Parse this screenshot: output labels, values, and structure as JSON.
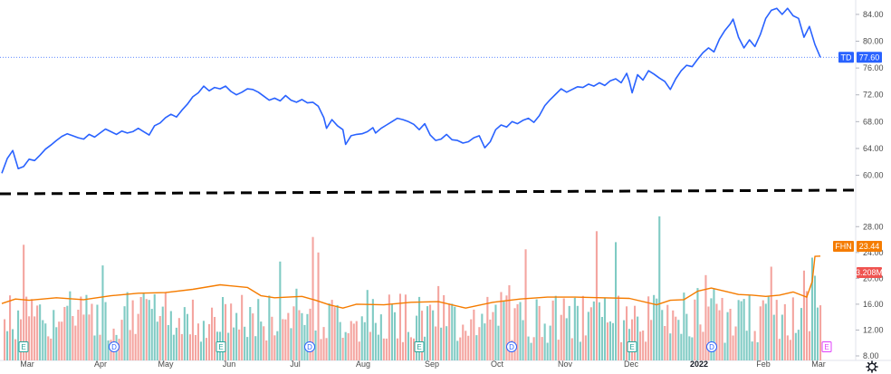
{
  "colors": {
    "td_line": "#2962ff",
    "fhn_line": "#f57c00",
    "vol_up": "#80cbc4",
    "vol_down": "#f4a5a0",
    "divider": "#000000",
    "earnings_flag": "#26a69a",
    "dividend_flag": "#2962ff",
    "future_earnings_flag": "#e040fb"
  },
  "tags": {
    "td_symbol": "TD",
    "td_value": "77.60",
    "fhn_symbol": "FHN",
    "fhn_value": "23.44",
    "volume_value": "3.208M"
  },
  "settings_icon": "gear-icon",
  "chart_data": [
    {
      "type": "line",
      "series": [
        {
          "name": "TD",
          "color": "#2962ff"
        }
      ],
      "x_range": [
        "2021-02-20",
        "2022-03-02"
      ],
      "x_ticks": [
        "Mar",
        "Apr",
        "May",
        "Jun",
        "Jul",
        "Aug",
        "Sep",
        "Oct",
        "Nov",
        "Dec",
        "2022",
        "Feb",
        "Mar"
      ],
      "y_ticks": [
        "84.00",
        "80.00",
        "76.00",
        "72.00",
        "68.00",
        "64.00",
        "60.00"
      ],
      "ylim": [
        59.4,
        85.2
      ],
      "last_value": 77.6,
      "points": [
        [
          0,
          60.3
        ],
        [
          2,
          62.5
        ],
        [
          4,
          63.7
        ],
        [
          6,
          61.0
        ],
        [
          8,
          61.3
        ],
        [
          10,
          62.4
        ],
        [
          12,
          62.2
        ],
        [
          14,
          63.0
        ],
        [
          16,
          63.9
        ],
        [
          18,
          64.5
        ],
        [
          20,
          65.2
        ],
        [
          22,
          65.8
        ],
        [
          24,
          66.2
        ],
        [
          26,
          65.9
        ],
        [
          28,
          65.6
        ],
        [
          30,
          65.4
        ],
        [
          32,
          66.1
        ],
        [
          34,
          65.7
        ],
        [
          36,
          66.3
        ],
        [
          38,
          66.9
        ],
        [
          40,
          66.5
        ],
        [
          42,
          66.1
        ],
        [
          44,
          66.6
        ],
        [
          46,
          66.3
        ],
        [
          48,
          66.5
        ],
        [
          50,
          67.0
        ],
        [
          52,
          66.5
        ],
        [
          54,
          66.0
        ],
        [
          56,
          67.4
        ],
        [
          58,
          67.8
        ],
        [
          60,
          68.6
        ],
        [
          62,
          69.1
        ],
        [
          64,
          68.7
        ],
        [
          66,
          69.7
        ],
        [
          68,
          70.6
        ],
        [
          70,
          71.7
        ],
        [
          72,
          72.3
        ],
        [
          74,
          73.3
        ],
        [
          76,
          72.6
        ],
        [
          78,
          73.1
        ],
        [
          80,
          72.9
        ],
        [
          82,
          73.3
        ],
        [
          84,
          72.5
        ],
        [
          86,
          72.0
        ],
        [
          88,
          72.4
        ],
        [
          90,
          72.9
        ],
        [
          92,
          72.8
        ],
        [
          94,
          72.4
        ],
        [
          96,
          71.8
        ],
        [
          98,
          71.2
        ],
        [
          100,
          71.5
        ],
        [
          102,
          71.1
        ],
        [
          104,
          71.9
        ],
        [
          106,
          71.2
        ],
        [
          108,
          70.9
        ],
        [
          110,
          71.3
        ],
        [
          112,
          70.8
        ],
        [
          114,
          70.9
        ],
        [
          116,
          70.3
        ],
        [
          118,
          68.6
        ],
        [
          119,
          67.0
        ],
        [
          121,
          68.3
        ],
        [
          123,
          67.4
        ],
        [
          125,
          66.8
        ],
        [
          126,
          64.6
        ],
        [
          128,
          65.9
        ],
        [
          130,
          66.1
        ],
        [
          132,
          66.2
        ],
        [
          134,
          66.5
        ],
        [
          136,
          67.1
        ],
        [
          137,
          66.3
        ],
        [
          139,
          67.0
        ],
        [
          141,
          67.5
        ],
        [
          143,
          68.0
        ],
        [
          145,
          68.5
        ],
        [
          147,
          68.3
        ],
        [
          149,
          68.0
        ],
        [
          151,
          67.6
        ],
        [
          153,
          66.8
        ],
        [
          155,
          67.7
        ],
        [
          157,
          66.0
        ],
        [
          159,
          65.2
        ],
        [
          161,
          65.4
        ],
        [
          163,
          66.1
        ],
        [
          165,
          65.3
        ],
        [
          167,
          65.2
        ],
        [
          169,
          64.8
        ],
        [
          171,
          65.0
        ],
        [
          173,
          65.6
        ],
        [
          175,
          65.9
        ],
        [
          177,
          64.1
        ],
        [
          179,
          65.0
        ],
        [
          181,
          66.8
        ],
        [
          183,
          67.5
        ],
        [
          185,
          67.2
        ],
        [
          187,
          68.0
        ],
        [
          189,
          67.7
        ],
        [
          191,
          68.2
        ],
        [
          193,
          68.5
        ],
        [
          195,
          67.9
        ],
        [
          197,
          68.9
        ],
        [
          199,
          70.4
        ],
        [
          201,
          71.3
        ],
        [
          203,
          72.1
        ],
        [
          205,
          72.9
        ],
        [
          207,
          72.4
        ],
        [
          209,
          72.8
        ],
        [
          211,
          73.2
        ],
        [
          213,
          73.1
        ],
        [
          215,
          73.6
        ],
        [
          217,
          73.3
        ],
        [
          219,
          73.8
        ],
        [
          221,
          73.4
        ],
        [
          223,
          74.1
        ],
        [
          225,
          74.4
        ],
        [
          227,
          73.8
        ],
        [
          229,
          75.2
        ],
        [
          230,
          74.0
        ],
        [
          231,
          72.3
        ],
        [
          233,
          75.0
        ],
        [
          235,
          74.2
        ],
        [
          237,
          75.6
        ],
        [
          239,
          75.1
        ],
        [
          241,
          74.5
        ],
        [
          243,
          74.0
        ],
        [
          245,
          72.8
        ],
        [
          247,
          74.4
        ],
        [
          249,
          75.6
        ],
        [
          251,
          76.4
        ],
        [
          253,
          76.2
        ],
        [
          255,
          77.3
        ],
        [
          257,
          78.3
        ],
        [
          259,
          79.0
        ],
        [
          261,
          78.4
        ],
        [
          263,
          80.3
        ],
        [
          265,
          81.6
        ],
        [
          267,
          82.6
        ],
        [
          268,
          83.3
        ],
        [
          270,
          80.6
        ],
        [
          272,
          79.0
        ],
        [
          274,
          80.2
        ],
        [
          276,
          79.2
        ],
        [
          278,
          81.0
        ],
        [
          280,
          83.4
        ],
        [
          282,
          84.6
        ],
        [
          284,
          84.9
        ],
        [
          286,
          84.0
        ],
        [
          288,
          84.9
        ],
        [
          290,
          83.8
        ],
        [
          292,
          83.4
        ],
        [
          294,
          80.6
        ],
        [
          296,
          82.2
        ],
        [
          298,
          79.5
        ],
        [
          300,
          77.6
        ]
      ]
    },
    {
      "type": "bar",
      "series": [
        {
          "name": "Volume"
        },
        {
          "name": "FHN",
          "color": "#f57c00"
        }
      ],
      "y_ticks": [
        "28.00",
        "24.00",
        "20.00",
        "16.00",
        "12.00",
        "8.00"
      ],
      "ylim": [
        8,
        30
      ],
      "fhn_last_value": 23.44,
      "fhn_points": [
        [
          0,
          16.1
        ],
        [
          5,
          16.8
        ],
        [
          10,
          16.6
        ],
        [
          20,
          17.0
        ],
        [
          30,
          16.7
        ],
        [
          40,
          17.3
        ],
        [
          50,
          17.7
        ],
        [
          60,
          17.8
        ],
        [
          70,
          18.3
        ],
        [
          80,
          19.0
        ],
        [
          90,
          18.6
        ],
        [
          95,
          17.3
        ],
        [
          100,
          17.0
        ],
        [
          110,
          17.2
        ],
        [
          115,
          16.6
        ],
        [
          120,
          15.9
        ],
        [
          125,
          15.4
        ],
        [
          130,
          16.0
        ],
        [
          140,
          15.9
        ],
        [
          150,
          16.3
        ],
        [
          160,
          16.4
        ],
        [
          170,
          15.4
        ],
        [
          180,
          16.3
        ],
        [
          190,
          16.8
        ],
        [
          200,
          17.1
        ],
        [
          210,
          17.1
        ],
        [
          220,
          17.0
        ],
        [
          230,
          16.9
        ],
        [
          240,
          15.9
        ],
        [
          245,
          16.6
        ],
        [
          250,
          16.7
        ],
        [
          255,
          18.0
        ],
        [
          260,
          18.5
        ],
        [
          265,
          18.0
        ],
        [
          270,
          17.5
        ],
        [
          275,
          17.4
        ],
        [
          280,
          17.2
        ],
        [
          285,
          17.4
        ],
        [
          290,
          17.9
        ],
        [
          295,
          17.1
        ],
        [
          297,
          19.5
        ],
        [
          298,
          23.4
        ],
        [
          300,
          23.44
        ]
      ],
      "volume_last": "3.208M",
      "event_flags": [
        {
          "type": "earnings",
          "label": "E"
        },
        {
          "type": "dividend",
          "label": "D"
        },
        {
          "type": "earnings",
          "label": "E"
        },
        {
          "type": "dividend",
          "label": "D"
        },
        {
          "type": "earnings",
          "label": "E"
        },
        {
          "type": "dividend",
          "label": "D"
        },
        {
          "type": "earnings",
          "label": "E"
        },
        {
          "type": "dividend",
          "label": "D"
        },
        {
          "type": "future_earnings",
          "label": "E"
        }
      ]
    }
  ]
}
